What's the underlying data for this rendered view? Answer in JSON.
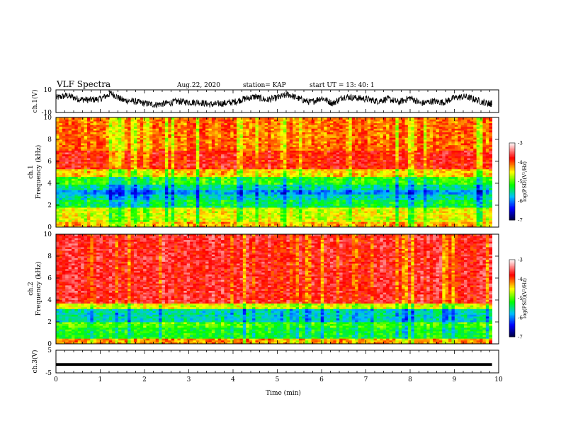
{
  "header": {
    "title": "VLF Spectra",
    "date": "Aug.22, 2020",
    "station": "station= KAP",
    "start_time": "start  UT =   13: 40: 1"
  },
  "chart_data": [
    {
      "type": "line",
      "ylabel": "ch.1(V)",
      "x_range": [
        0,
        10
      ],
      "ylim": [
        -10,
        10
      ],
      "y_tick_labels": [
        "10",
        "-10"
      ],
      "series": [
        {
          "color": "#000000",
          "x": [
            0,
            0.25,
            0.5,
            0.75,
            1,
            1.25,
            1.5,
            1.75,
            2,
            2.25,
            2.5,
            2.75,
            3,
            3.25,
            3.5,
            3.75,
            4,
            4.25,
            4.5,
            4.75,
            5,
            5.25,
            5.5,
            5.75,
            6,
            6.25,
            6.5,
            6.75,
            7,
            7.25,
            7.5,
            7.75,
            8,
            8.25,
            8.5,
            8.75,
            9,
            9.25,
            9.5,
            9.75,
            9.85
          ],
          "y": [
            3,
            5,
            2,
            1,
            2,
            7,
            1,
            0,
            -2,
            -3,
            -2,
            0,
            -1,
            -1,
            -3,
            -2,
            -1,
            2,
            4,
            1,
            3,
            6,
            2,
            -1,
            3,
            -2,
            4,
            3,
            2,
            0,
            2,
            -1,
            3,
            -2,
            0,
            -1,
            3,
            4,
            1,
            -2,
            -2
          ]
        }
      ]
    },
    {
      "type": "heatmap",
      "channel_label": "ch.1",
      "ylabel": "Frequency (kHz)",
      "ylim": [
        0,
        10
      ],
      "y_ticks": [
        0,
        2,
        4,
        6,
        8,
        10
      ],
      "x_range": [
        0,
        9.85
      ],
      "colorbar": {
        "label": "log(PSD)(V²/Hz)",
        "ticks": [
          "-3",
          "-4",
          "-5",
          "-6",
          "-7"
        ],
        "range": [
          -7,
          -3
        ],
        "colors": [
          "#000040",
          "#0000ff",
          "#00bfff",
          "#00ff00",
          "#ffff00",
          "#ff0000",
          "#ffffff"
        ]
      },
      "bands": [
        {
          "f": [
            0,
            0.5
          ],
          "log_psd": -4.3
        },
        {
          "f": [
            0.5,
            1.8
          ],
          "log_psd": -4.6
        },
        {
          "f": [
            1.8,
            2.5
          ],
          "log_psd": -5.3
        },
        {
          "f": [
            2.5,
            3.0
          ],
          "log_psd": -5.6
        },
        {
          "f": [
            3.0,
            3.4
          ],
          "log_psd": -5.9
        },
        {
          "f": [
            3.4,
            3.9
          ],
          "log_psd": -5.5
        },
        {
          "f": [
            3.9,
            4.6
          ],
          "log_psd": -5.1
        },
        {
          "f": [
            4.6,
            5.3
          ],
          "log_psd": -4.4
        },
        {
          "f": [
            5.3,
            7.0
          ],
          "log_psd": -3.8
        },
        {
          "f": [
            7.0,
            10.0
          ],
          "log_psd": -4.1
        }
      ]
    },
    {
      "type": "heatmap",
      "channel_label": "ch.2",
      "ylabel": "Frequency (kHz)",
      "ylim": [
        0,
        10
      ],
      "y_ticks": [
        0,
        2,
        4,
        6,
        8,
        10
      ],
      "x_range": [
        0,
        9.85
      ],
      "colorbar": {
        "label": "log(PSD)(V²/Hz)",
        "ticks": [
          "-3",
          "-4",
          "-5",
          "-6",
          "-7"
        ],
        "range": [
          -7,
          -3
        ],
        "colors": [
          "#000040",
          "#0000ff",
          "#00bfff",
          "#00ff00",
          "#ffff00",
          "#ff0000",
          "#ffffff"
        ]
      },
      "bands": [
        {
          "f": [
            0,
            0.5
          ],
          "log_psd": -4.2
        },
        {
          "f": [
            0.5,
            1.5
          ],
          "log_psd": -5.2
        },
        {
          "f": [
            1.5,
            2.0
          ],
          "log_psd": -5.0
        },
        {
          "f": [
            2.0,
            3.2
          ],
          "log_psd": -5.6
        },
        {
          "f": [
            3.2,
            3.7
          ],
          "log_psd": -4.6
        },
        {
          "f": [
            3.7,
            10.0
          ],
          "log_psd": -3.7
        }
      ]
    },
    {
      "type": "line",
      "ylabel": "ch.3(V)",
      "xlabel": "Time (min)",
      "x_range": [
        0,
        10
      ],
      "ylim": [
        -5,
        5
      ],
      "y_tick_labels": [
        "5",
        "-5"
      ],
      "x_tick_labels": [
        "0",
        "1",
        "2",
        "3",
        "4",
        "5",
        "6",
        "7",
        "8",
        "9",
        "10"
      ],
      "series": [
        {
          "color": "#000000",
          "x": [
            0,
            9.85
          ],
          "y": [
            -1.3,
            -1.3
          ],
          "band_width": 1.2
        }
      ]
    }
  ]
}
